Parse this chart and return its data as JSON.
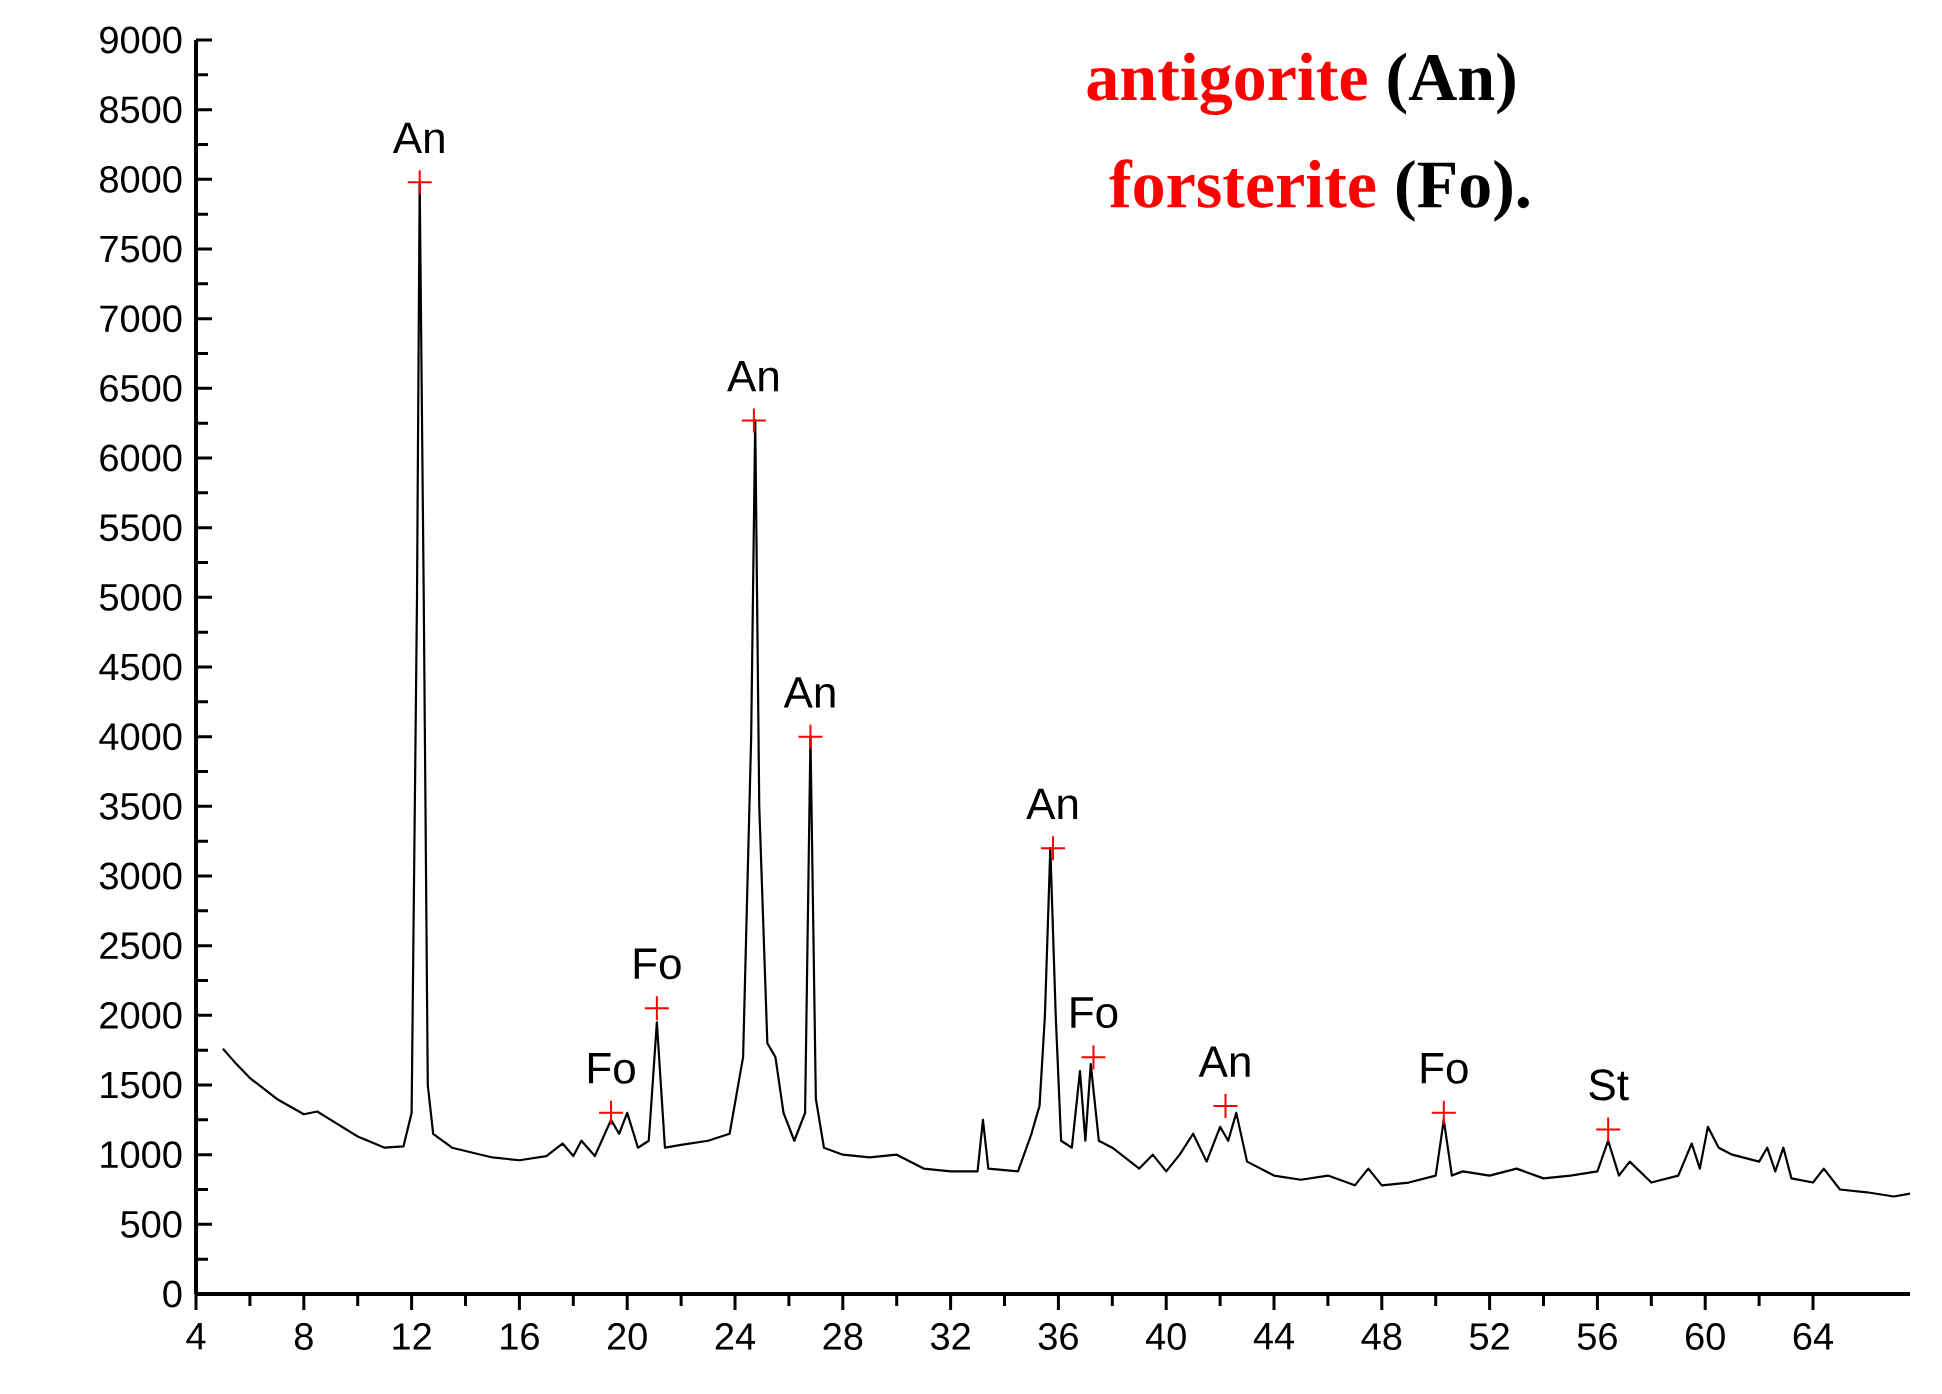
{
  "chart_data": {
    "type": "line",
    "series": [
      {
        "color": "#000000",
        "x": [
          5.0,
          5.5,
          6,
          7,
          8,
          8.5,
          9,
          10,
          11,
          11.7,
          12.0,
          12.2,
          12.3,
          12.45,
          12.6,
          12.8,
          13.5,
          15,
          16,
          17,
          17.6,
          18,
          18.3,
          18.8,
          19.4,
          19.7,
          20.0,
          20.4,
          20.8,
          21.1,
          21.4,
          22,
          23,
          23.8,
          24.3,
          24.6,
          24.75,
          24.9,
          25.2,
          25.5,
          25.8,
          26.2,
          26.6,
          26.8,
          27.0,
          27.3,
          28,
          29,
          30,
          31,
          32,
          33,
          33.2,
          33.4,
          34.5,
          35.0,
          35.3,
          35.5,
          35.7,
          35.9,
          36.1,
          36.5,
          36.8,
          37.0,
          37.2,
          37.5,
          38,
          39,
          39.5,
          40,
          40.5,
          41,
          41.5,
          42,
          42.3,
          42.6,
          43,
          44,
          45,
          46,
          47,
          47.5,
          48,
          49,
          50,
          50.3,
          50.6,
          51,
          52,
          53,
          54,
          55,
          56,
          56.4,
          56.8,
          57.2,
          58,
          59,
          59.5,
          59.8,
          60.1,
          60.5,
          61,
          62,
          62.3,
          62.6,
          62.9,
          63.2,
          64,
          64.4,
          65,
          66,
          67,
          67.6
        ],
        "values": [
          1760,
          1650,
          1550,
          1400,
          1290,
          1310,
          1250,
          1130,
          1050,
          1060,
          1300,
          5000,
          7980,
          5000,
          1500,
          1150,
          1050,
          980,
          960,
          990,
          1080,
          990,
          1100,
          990,
          1250,
          1150,
          1300,
          1050,
          1100,
          1950,
          1050,
          1070,
          1100,
          1150,
          1700,
          4000,
          6270,
          3500,
          1800,
          1700,
          1300,
          1100,
          1300,
          4000,
          1400,
          1050,
          1000,
          980,
          1000,
          900,
          880,
          880,
          1250,
          900,
          880,
          1150,
          1350,
          2000,
          3200,
          2000,
          1100,
          1050,
          1600,
          1100,
          1650,
          1100,
          1050,
          900,
          1000,
          880,
          1000,
          1150,
          950,
          1200,
          1100,
          1300,
          950,
          850,
          820,
          850,
          780,
          900,
          780,
          800,
          850,
          1250,
          850,
          880,
          850,
          900,
          830,
          850,
          880,
          1100,
          850,
          950,
          800,
          850,
          1080,
          900,
          1200,
          1050,
          1000,
          950,
          1050,
          880,
          1050,
          830,
          800,
          900,
          750,
          730,
          700,
          720
        ]
      },
      {
        "type": "scatter",
        "marker": "cross",
        "color": "#ff0000",
        "x": [
          12.3,
          19.4,
          21.1,
          24.7,
          26.8,
          35.8,
          37.3,
          42.2,
          50.3,
          56.4
        ],
        "values": [
          7980,
          1300,
          2050,
          6270,
          4000,
          3200,
          1700,
          1350,
          1300,
          1180
        ]
      }
    ],
    "xlim": [
      4,
      67.6
    ],
    "ylim": [
      0,
      9000
    ],
    "xticks": [
      4,
      8,
      12,
      16,
      20,
      24,
      28,
      32,
      36,
      40,
      44,
      48,
      52,
      56,
      60,
      64
    ],
    "yticks": [
      0,
      500,
      1000,
      1500,
      2000,
      2500,
      3000,
      3500,
      4000,
      4500,
      5000,
      5500,
      6000,
      6500,
      7000,
      7500,
      8000,
      8500,
      9000
    ],
    "annotations": [
      "antigorite",
      "(An)",
      "forsterite",
      "(Fo).",
      {
        "text": "An",
        "x": 12.3,
        "y": 7980
      },
      {
        "text": "Fo",
        "x": 19.4,
        "y": 1300
      },
      {
        "text": "Fo",
        "x": 21.1,
        "y": 2050
      },
      {
        "text": "An",
        "x": 24.7,
        "y": 6270
      },
      {
        "text": "An",
        "x": 26.8,
        "y": 4000
      },
      {
        "text": "An",
        "x": 35.8,
        "y": 3200
      },
      {
        "text": "Fo",
        "x": 37.3,
        "y": 1700
      },
      {
        "text": "An",
        "x": 42.2,
        "y": 1350
      },
      {
        "text": "Fo",
        "x": 50.3,
        "y": 1300
      },
      {
        "text": "St",
        "x": 56.4,
        "y": 1180
      }
    ]
  }
}
